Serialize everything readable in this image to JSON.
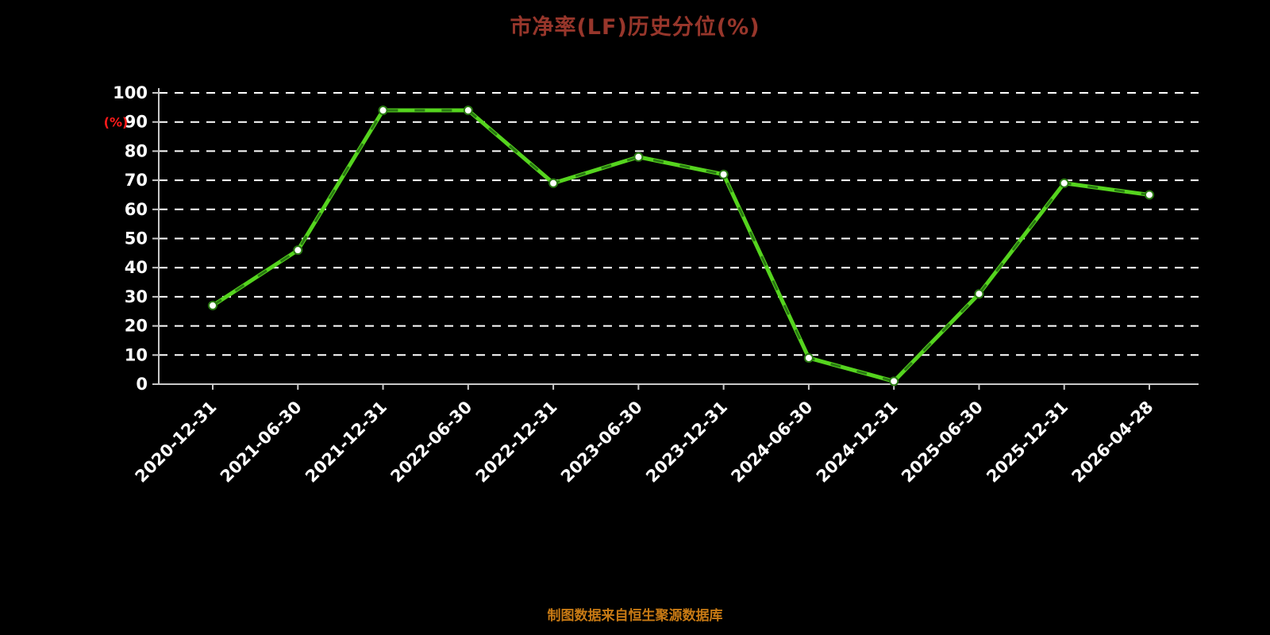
{
  "page": {
    "background_color": "#000000"
  },
  "header": {
    "title": "市净率(LF)历史分位(%)",
    "title_color": "#97362b"
  },
  "footer": {
    "source_note": "制图数据来自恒生聚源数据库",
    "source_note_color": "#c87a14"
  },
  "chart_data": {
    "type": "line",
    "title": "市净率(LF)历史分位(%)",
    "ylabel": "(%)",
    "xlabel": "",
    "categories": [
      "2020-12-31",
      "2021-06-30",
      "2021-12-31",
      "2022-06-30",
      "2022-12-31",
      "2023-06-30",
      "2023-12-31",
      "2024-06-30",
      "2024-12-31",
      "2025-06-30",
      "2025-12-31",
      "2026-04-28"
    ],
    "values": [
      27,
      46,
      94,
      94,
      69,
      78,
      72,
      9,
      1,
      31,
      69,
      65
    ],
    "ylim": [
      0,
      100
    ],
    "y_ticks": [
      0,
      10,
      20,
      30,
      40,
      50,
      60,
      70,
      80,
      90,
      100
    ],
    "grid": "horizontal-dashed",
    "legend_position": "none",
    "colors": {
      "line": "#55d41e",
      "line_overlay_dash": "#2a7a12",
      "marker_fill": "#ffffff",
      "marker_stroke": "#2a7a12",
      "axis": "#c9c9c9",
      "gridline": "#ffffff",
      "tick_label": "#ffffff",
      "ylabel_color": "#ff1a1a"
    }
  }
}
